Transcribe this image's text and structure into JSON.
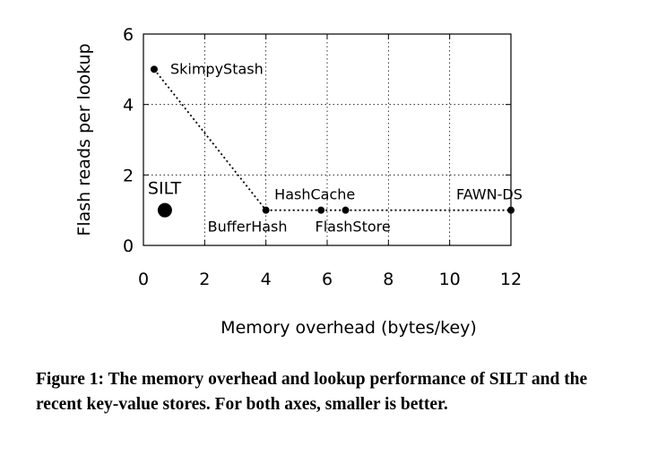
{
  "chart_data": {
    "type": "scatter",
    "xlabel": "Memory overhead (bytes/key)",
    "ylabel": "Flash reads per lookup",
    "xlim": [
      0,
      12
    ],
    "ylim": [
      0,
      6
    ],
    "xticks": [
      "0",
      "2",
      "4",
      "6",
      "8",
      "10",
      "12"
    ],
    "yticks": [
      "0",
      "2",
      "4",
      "6"
    ],
    "grid": true,
    "points": [
      {
        "label": "SkimpyStash",
        "x": 0.35,
        "y": 5
      },
      {
        "label": "BufferHash",
        "x": 4,
        "y": 1
      },
      {
        "label": "HashCache",
        "x": 5.8,
        "y": 1
      },
      {
        "label": "FlashStore",
        "x": 6.6,
        "y": 1
      },
      {
        "label": "FAWN-DS",
        "x": 12,
        "y": 1
      }
    ],
    "highlight": {
      "label": "SILT",
      "x": 0.7,
      "y": 1
    }
  },
  "caption": "Figure 1: The memory overhead and lookup performance of SILT and the recent key-value stores. For both axes, smaller is better."
}
